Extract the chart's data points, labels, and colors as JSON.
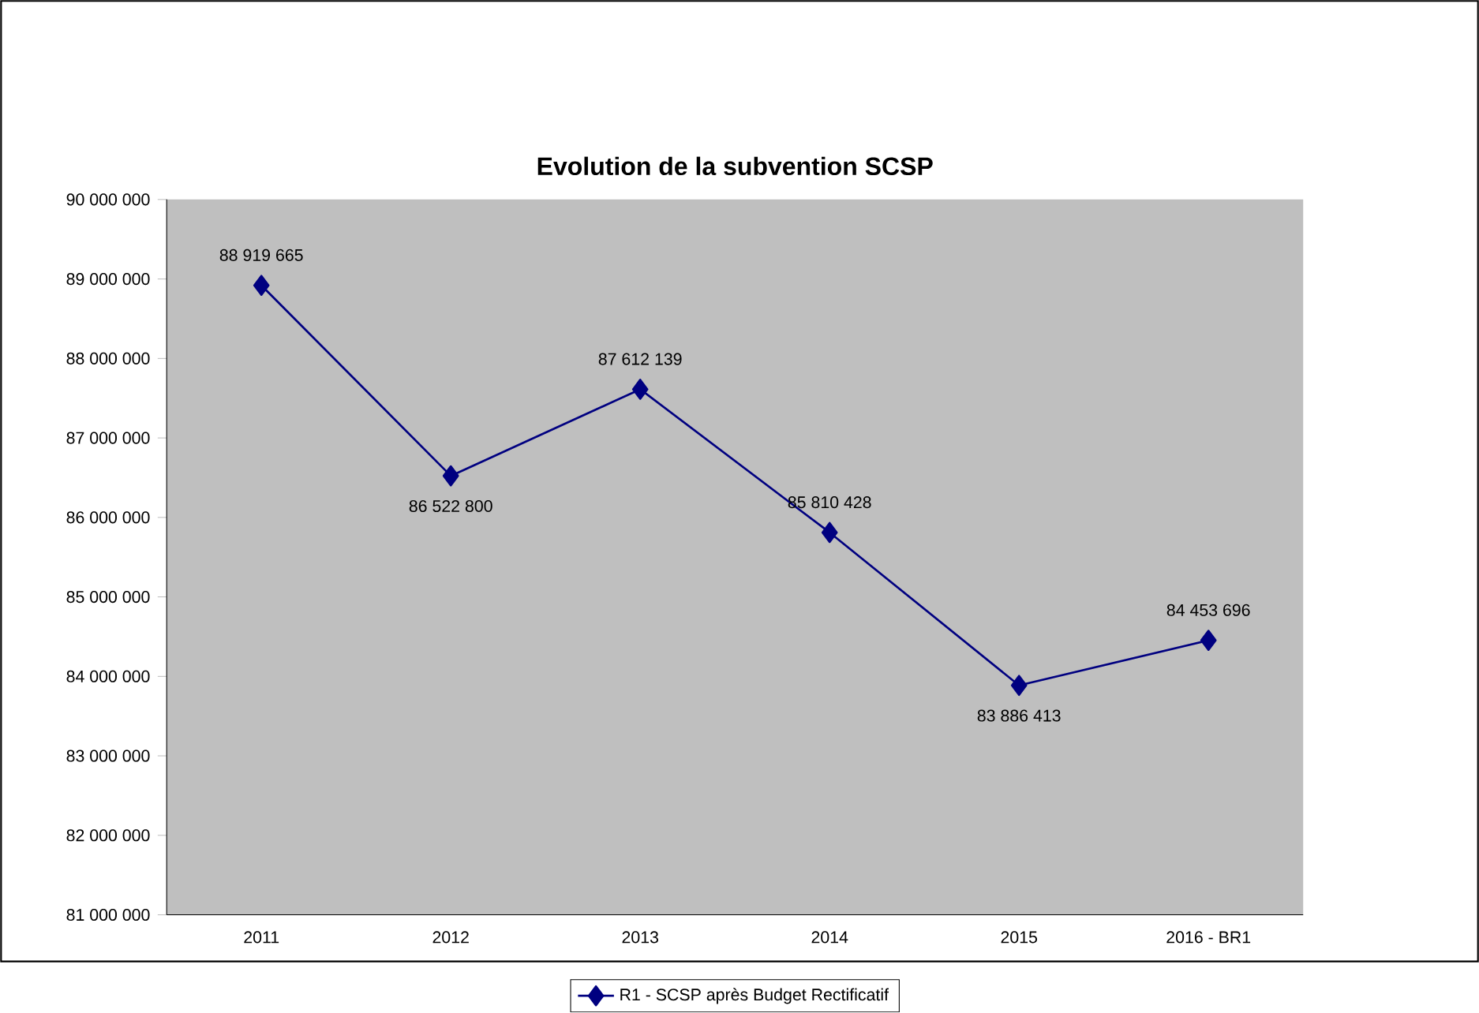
{
  "chart_data": {
    "type": "line",
    "title": "Evolution de la subvention SCSP",
    "categories": [
      "2011",
      "2012",
      "2013",
      "2014",
      "2015",
      "2016 - BR1"
    ],
    "series": [
      {
        "name": "R1 - SCSP après Budget Rectificatif",
        "color": "#000080",
        "values": [
          88919665,
          86522800,
          87612139,
          85810428,
          83886413,
          84453696
        ],
        "value_labels": [
          "88 919 665",
          "86 522 800",
          "87 612 139",
          "85 810 428",
          "83 886 413",
          "84 453 696"
        ]
      }
    ],
    "ylim": [
      81000000,
      90000000
    ],
    "yticks": [
      {
        "value": 81000000,
        "label": "81 000 000"
      },
      {
        "value": 82000000,
        "label": "82 000 000"
      },
      {
        "value": 83000000,
        "label": "83 000 000"
      },
      {
        "value": 84000000,
        "label": "84 000 000"
      },
      {
        "value": 85000000,
        "label": "85 000 000"
      },
      {
        "value": 86000000,
        "label": "86 000 000"
      },
      {
        "value": 87000000,
        "label": "87 000 000"
      },
      {
        "value": 88000000,
        "label": "88 000 000"
      },
      {
        "value": 89000000,
        "label": "89 000 000"
      },
      {
        "value": 90000000,
        "label": "90 000 000"
      }
    ],
    "marker": "diamond",
    "legend": "bottom",
    "grid": false
  }
}
